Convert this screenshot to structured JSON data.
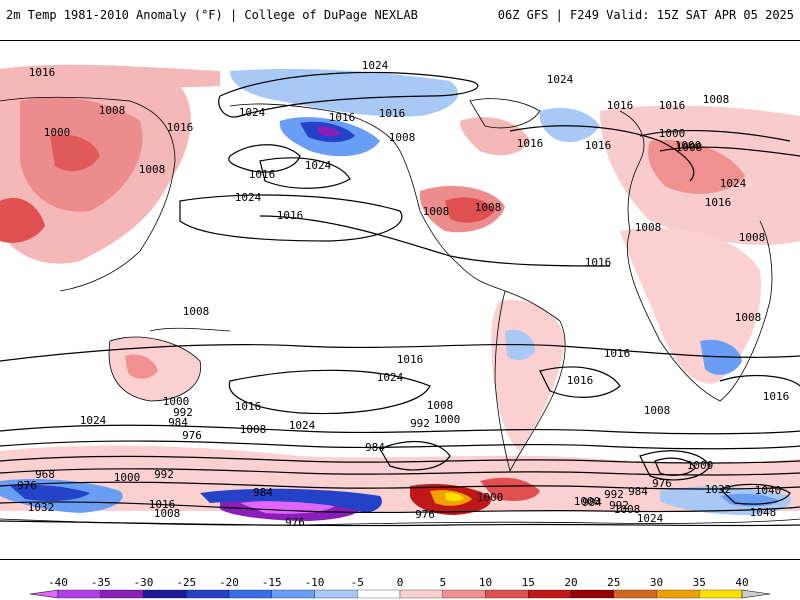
{
  "header": {
    "title": "2m Temp 1981-2010 Anomaly (°F) | College of DuPage NEXLAB",
    "valid": "06Z GFS | F249 Valid: 15Z SAT APR 05 2025"
  },
  "map": {
    "isobar_color": "#000000",
    "projection": "cylindrical global",
    "isobar_labels": [
      "1016",
      "1024",
      "1024",
      "1024",
      "1016",
      "1008",
      "1000",
      "1016",
      "1008",
      "1016",
      "1016",
      "1016",
      "1024",
      "1024",
      "1016",
      "1008",
      "1008",
      "1016",
      "1008",
      "1016",
      "1008",
      "1008",
      "1000",
      "1000",
      "1024",
      "1016",
      "1016",
      "1008",
      "1008",
      "1008",
      "1016",
      "1016",
      "1024",
      "1016",
      "1008",
      "1024",
      "1000",
      "992",
      "984",
      "976",
      "1016",
      "1008",
      "1024",
      "1008",
      "1000",
      "992",
      "984",
      "968",
      "976",
      "1000",
      "992",
      "984",
      "976",
      "1032",
      "1016",
      "1008",
      "1016",
      "1008",
      "992",
      "1000",
      "984",
      "992",
      "976",
      "1008",
      "1000",
      "984",
      "1024",
      "976",
      "1000",
      "1032",
      "1040",
      "1048",
      "1016"
    ]
  },
  "colorbar": {
    "ticks": [
      "-40",
      "-35",
      "-30",
      "-25",
      "-20",
      "-15",
      "-10",
      "-5",
      "0",
      "5",
      "10",
      "15",
      "20",
      "25",
      "30",
      "35",
      "40"
    ],
    "colors": [
      "#e066ff",
      "#b040e8",
      "#8a1fb8",
      "#1c1c9a",
      "#2342c8",
      "#3a6ee8",
      "#6a9ef5",
      "#a8c8f5",
      "#ffffff",
      "#fad0d0",
      "#f09090",
      "#e05050",
      "#c01818",
      "#9a0000",
      "#d2691e",
      "#f0a000",
      "#ffe000"
    ]
  }
}
